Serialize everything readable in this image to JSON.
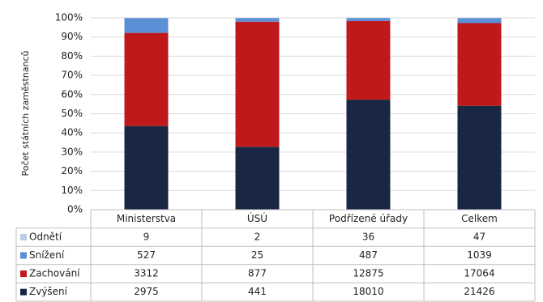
{
  "chart_data": {
    "type": "stacked_percent_bar",
    "y_label": "Počet státních zaměstnanců",
    "categories": [
      "Ministerstva",
      "ÚSÚ",
      "Podřízené úřady",
      "Celkem"
    ],
    "series": [
      {
        "name": "Odnětí",
        "color": "#b9cde5",
        "values": [
          9,
          2,
          36,
          47
        ]
      },
      {
        "name": "Snížení",
        "color": "#5b8fd6",
        "values": [
          527,
          25,
          487,
          1039
        ]
      },
      {
        "name": "Zachování",
        "color": "#c0191c",
        "values": [
          3312,
          877,
          12875,
          17064
        ]
      },
      {
        "name": "Zvýšení",
        "color": "#1a2744",
        "values": [
          2975,
          441,
          18010,
          21426
        ]
      }
    ],
    "ylim": [
      0,
      100
    ],
    "yticks": [
      {
        "value": 0,
        "label": "0%"
      },
      {
        "value": 10,
        "label": "10%"
      },
      {
        "value": 20,
        "label": "20%"
      },
      {
        "value": 30,
        "label": "30%"
      },
      {
        "value": 40,
        "label": "40%"
      },
      {
        "value": 50,
        "label": "50%"
      },
      {
        "value": 60,
        "label": "60%"
      },
      {
        "value": 70,
        "label": "70%"
      },
      {
        "value": 80,
        "label": "80%"
      },
      {
        "value": 90,
        "label": "90%"
      },
      {
        "value": 100,
        "label": "100%"
      }
    ],
    "grid": true
  }
}
